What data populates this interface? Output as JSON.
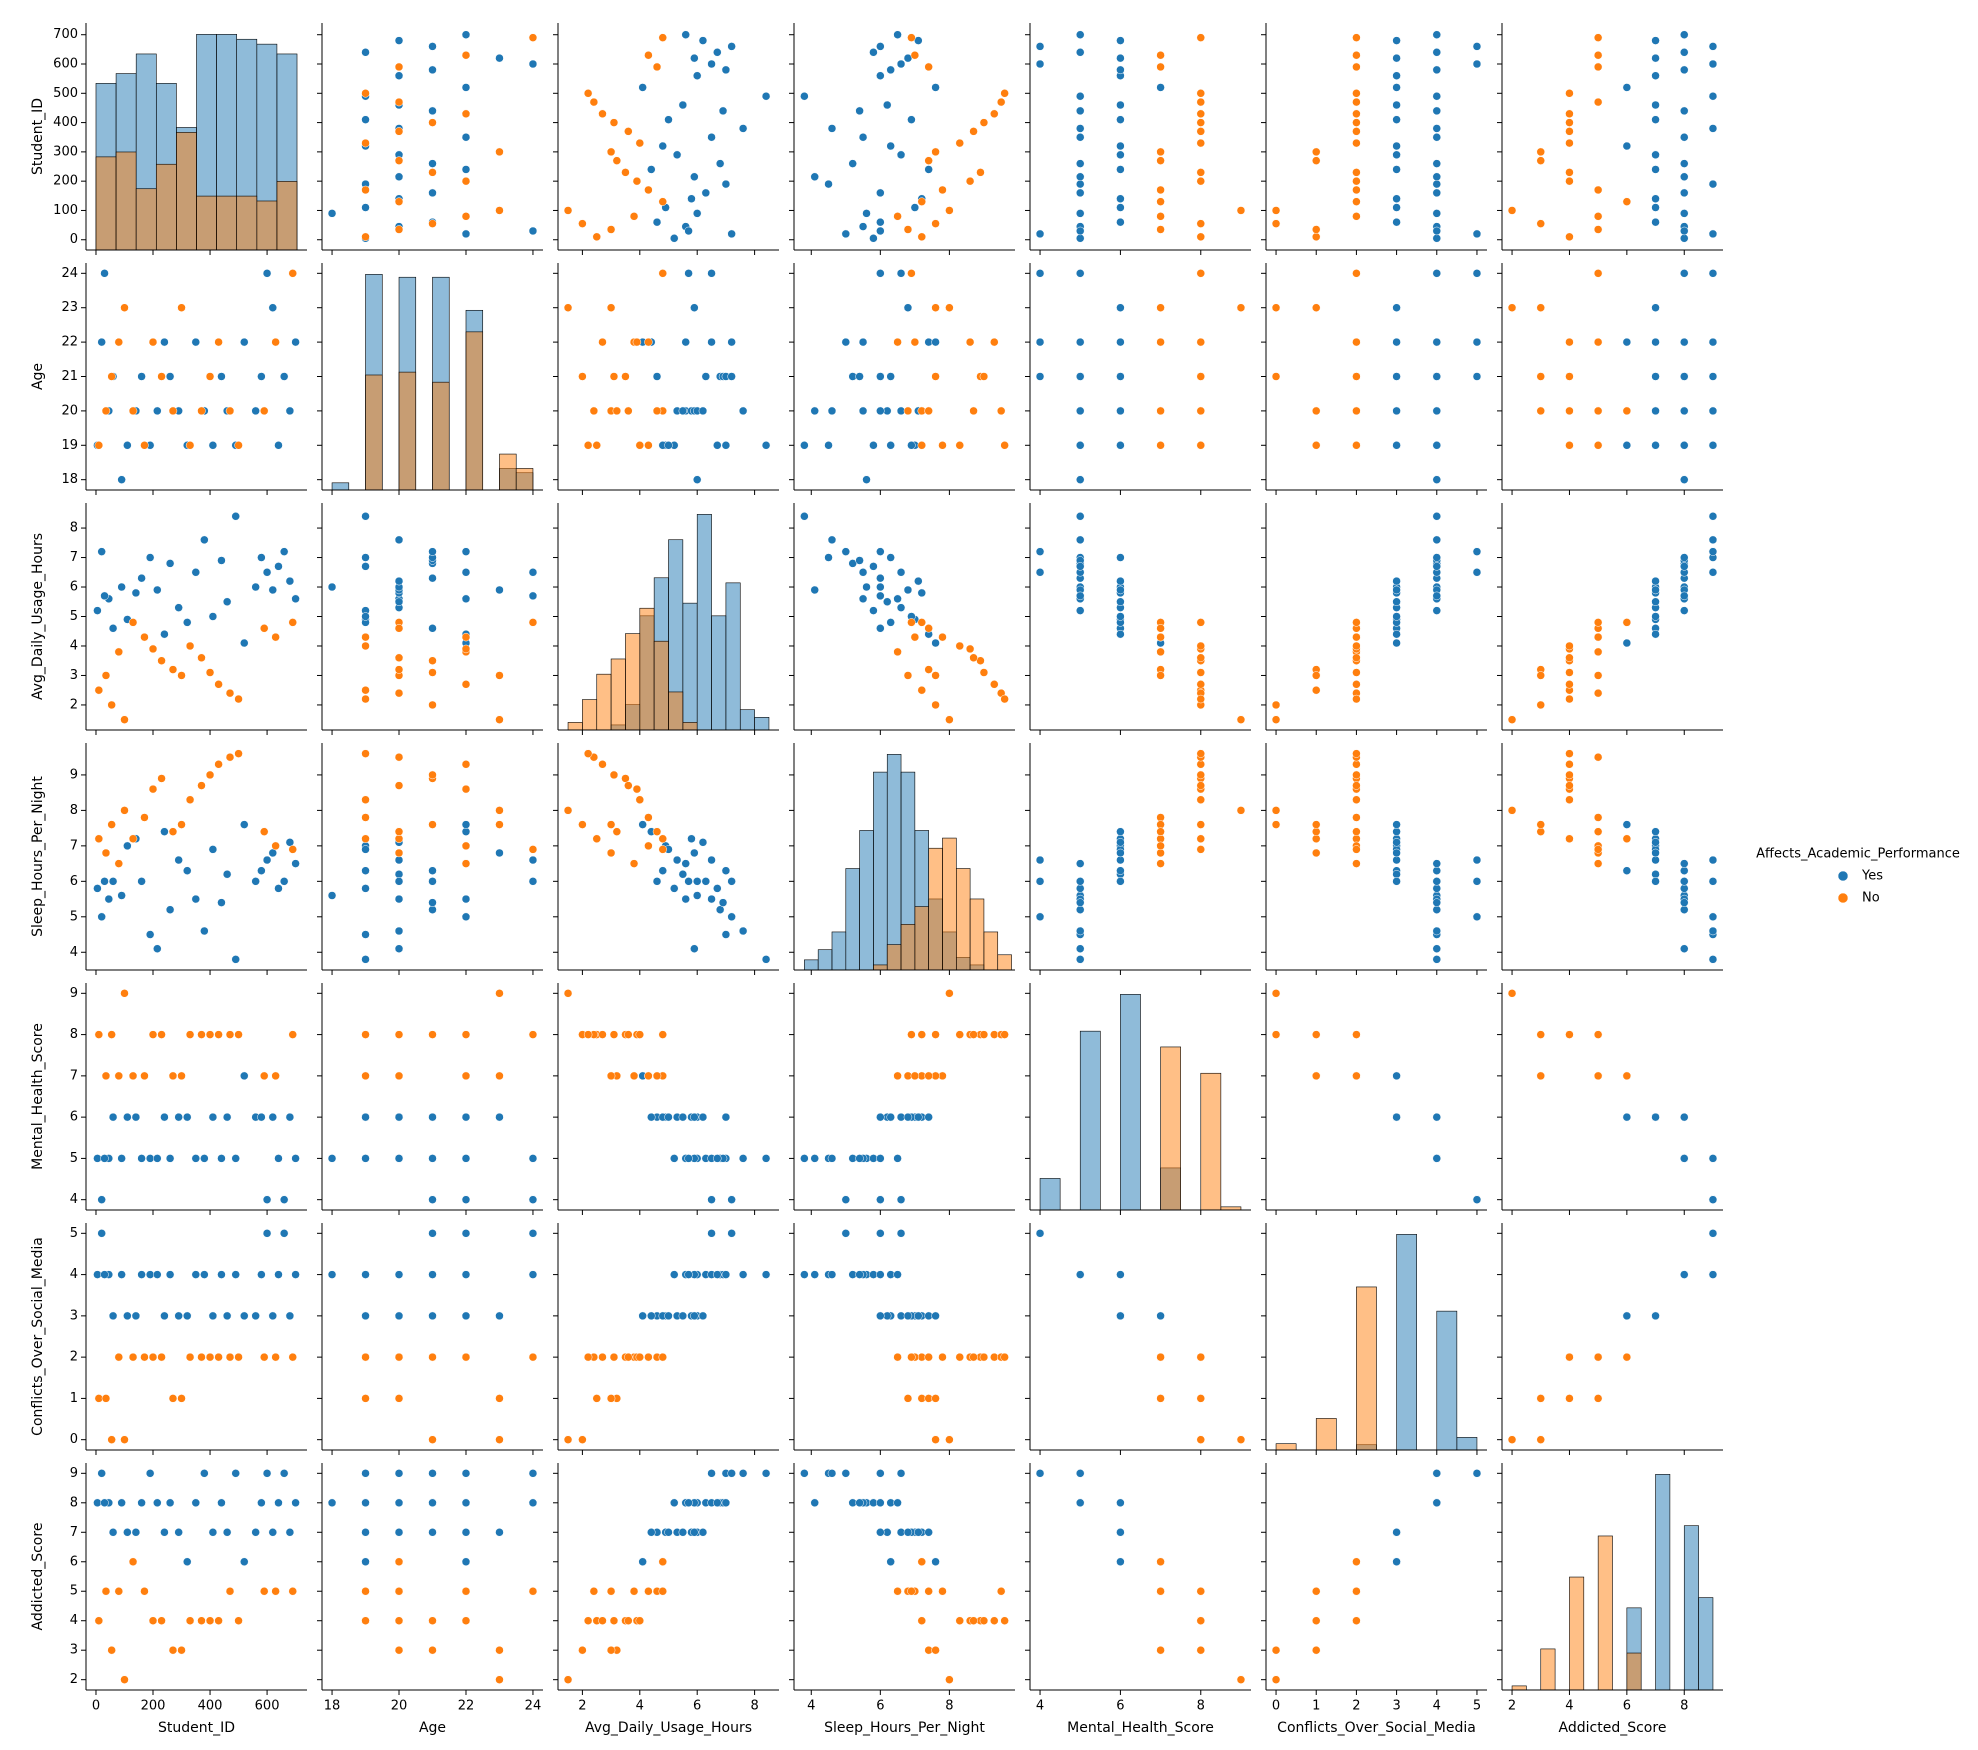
{
  "chart_data": {
    "type": "pairplot",
    "legend_title": "Affects_Academic_Performance",
    "variables": [
      {
        "name": "Student_ID",
        "lim": [
          -35,
          740
        ],
        "xticks": [
          0,
          200,
          400,
          600
        ],
        "yticks": [
          0,
          100,
          200,
          300,
          400,
          500,
          600,
          700
        ],
        "bins": [
          0,
          70.5,
          141,
          211.5,
          282,
          352.5,
          423,
          493.5,
          564,
          634.5,
          705
        ],
        "hist": [
          [
            68,
            72,
            80,
            68,
            50,
            88,
            88,
            86,
            84,
            80
          ],
          [
            38,
            40,
            25,
            35,
            48,
            22,
            22,
            22,
            20,
            28
          ]
        ]
      },
      {
        "name": "Age",
        "lim": [
          17.7,
          24.3
        ],
        "xticks": [
          18,
          20,
          22,
          24
        ],
        "yticks": [
          18,
          19,
          20,
          21,
          22,
          23,
          24
        ],
        "bins": [
          18,
          18.5,
          19,
          19.5,
          20,
          20.5,
          21,
          21.5,
          22,
          22.5,
          23,
          23.5,
          24
        ],
        "hist": [
          [
            5,
            0,
            150,
            0,
            148,
            0,
            148,
            0,
            125,
            0,
            15,
            12
          ],
          [
            0,
            0,
            80,
            0,
            82,
            0,
            75,
            0,
            110,
            0,
            25,
            15
          ]
        ]
      },
      {
        "name": "Avg_Daily_Usage_Hours",
        "lim": [
          1.15,
          8.85
        ],
        "xticks": [
          2,
          4,
          6,
          8
        ],
        "yticks": [
          2,
          3,
          4,
          5,
          6,
          7,
          8
        ],
        "bins": [
          1.5,
          2,
          2.5,
          3,
          3.5,
          4,
          4.5,
          5,
          5.5,
          6,
          6.5,
          7,
          7.5,
          8,
          8.5
        ],
        "hist": [
          [
            0,
            0,
            0,
            2,
            10,
            45,
            60,
            75,
            50,
            85,
            45,
            58,
            8,
            5
          ],
          [
            3,
            12,
            22,
            28,
            38,
            48,
            35,
            15,
            3,
            0,
            0,
            0,
            0,
            0
          ]
        ]
      },
      {
        "name": "Sleep_Hours_Per_Night",
        "lim": [
          3.5,
          9.9
        ],
        "xticks": [
          4,
          6,
          8
        ],
        "yticks": [
          4,
          5,
          6,
          7,
          8,
          9
        ],
        "bins": [
          3.8,
          4.2,
          4.6,
          5.0,
          5.4,
          5.8,
          6.2,
          6.6,
          7.0,
          7.4,
          7.8,
          8.2,
          8.6,
          9.0,
          9.4,
          9.8
        ],
        "hist": [
          [
            4,
            8,
            15,
            40,
            55,
            78,
            85,
            78,
            55,
            28,
            15,
            5,
            2,
            0,
            0
          ],
          [
            0,
            0,
            0,
            0,
            0,
            2,
            10,
            18,
            25,
            48,
            52,
            40,
            28,
            15,
            6
          ]
        ]
      },
      {
        "name": "Mental_Health_Score",
        "lim": [
          3.75,
          9.25
        ],
        "xticks": [
          4,
          6,
          8
        ],
        "yticks": [
          4,
          5,
          6,
          7,
          8,
          9
        ],
        "bins": [
          4,
          4.5,
          5,
          5.5,
          6,
          6.5,
          7,
          7.5,
          8,
          8.5,
          9
        ],
        "hist": [
          [
            30,
            0,
            170,
            0,
            205,
            0,
            40,
            0,
            0,
            0
          ],
          [
            0,
            0,
            0,
            0,
            0,
            0,
            155,
            0,
            130,
            3
          ]
        ]
      },
      {
        "name": "Conflicts_Over_Social_Media",
        "lim": [
          -0.25,
          5.25
        ],
        "xticks": [
          0,
          1,
          2,
          3,
          4,
          5
        ],
        "yticks": [
          0,
          1,
          2,
          3,
          4,
          5
        ],
        "bins": [
          0,
          0.5,
          1,
          1.5,
          2,
          2.5,
          3,
          3.5,
          4,
          4.5,
          5
        ],
        "hist": [
          [
            0,
            0,
            0,
            0,
            5,
            0,
            205,
            0,
            132,
            12
          ],
          [
            6,
            0,
            30,
            0,
            155,
            0,
            0,
            0,
            0,
            0
          ]
        ]
      },
      {
        "name": "Addicted_Score",
        "lim": [
          1.65,
          9.35
        ],
        "xticks": [
          2,
          4,
          6,
          8
        ],
        "yticks": [
          2,
          3,
          4,
          5,
          6,
          7,
          8,
          9
        ],
        "bins": [
          2,
          2.5,
          3,
          3.5,
          4,
          4.5,
          5,
          5.5,
          6,
          6.5,
          7,
          7.5,
          8,
          8.5,
          9
        ],
        "hist": [
          [
            0,
            0,
            0,
            0,
            0,
            0,
            0,
            0,
            40,
            0,
            105,
            0,
            80,
            45
          ],
          [
            2,
            0,
            20,
            0,
            55,
            0,
            75,
            0,
            18,
            0,
            0,
            0,
            0,
            0
          ]
        ]
      }
    ],
    "series": [
      {
        "name": "Yes",
        "color": "#1f77b4",
        "rows": [
          [
            5,
            19,
            5.2,
            5.8,
            5,
            4,
            8
          ],
          [
            20,
            22,
            7.2,
            5.0,
            4,
            5,
            9
          ],
          [
            45,
            20,
            5.6,
            5.5,
            5,
            4,
            8
          ],
          [
            60,
            21,
            4.6,
            6.0,
            6,
            3,
            7
          ],
          [
            90,
            18,
            6.0,
            5.6,
            5,
            4,
            8
          ],
          [
            110,
            19,
            4.9,
            7.0,
            6,
            3,
            7
          ],
          [
            140,
            20,
            5.8,
            7.2,
            6,
            3,
            7
          ],
          [
            160,
            21,
            6.3,
            6.0,
            5,
            4,
            8
          ],
          [
            190,
            19,
            7.0,
            4.5,
            5,
            4,
            9
          ],
          [
            215,
            20,
            5.9,
            4.1,
            5,
            4,
            8
          ],
          [
            240,
            22,
            4.4,
            7.4,
            6,
            3,
            7
          ],
          [
            260,
            21,
            6.8,
            5.2,
            5,
            4,
            8
          ],
          [
            290,
            20,
            5.3,
            6.6,
            6,
            3,
            7
          ],
          [
            320,
            19,
            4.8,
            6.3,
            6,
            3,
            6
          ],
          [
            350,
            22,
            6.5,
            5.5,
            5,
            4,
            8
          ],
          [
            380,
            20,
            7.6,
            4.6,
            5,
            4,
            9
          ],
          [
            410,
            19,
            5.0,
            6.9,
            6,
            3,
            7
          ],
          [
            440,
            21,
            6.9,
            5.4,
            5,
            4,
            8
          ],
          [
            460,
            20,
            5.5,
            6.2,
            6,
            3,
            7
          ],
          [
            490,
            19,
            8.4,
            3.8,
            5,
            4,
            9
          ],
          [
            520,
            22,
            4.1,
            7.6,
            7,
            3,
            6
          ],
          [
            560,
            20,
            6.0,
            6.0,
            6,
            3,
            7
          ],
          [
            580,
            21,
            7.0,
            6.3,
            6,
            4,
            8
          ],
          [
            600,
            24,
            6.5,
            6.6,
            4,
            5,
            9
          ],
          [
            620,
            23,
            5.9,
            6.8,
            6,
            3,
            7
          ],
          [
            640,
            19,
            6.7,
            5.8,
            5,
            4,
            8
          ],
          [
            660,
            21,
            7.2,
            6.0,
            4,
            5,
            9
          ],
          [
            680,
            20,
            6.2,
            7.1,
            6,
            3,
            7
          ],
          [
            700,
            22,
            5.6,
            6.5,
            5,
            4,
            8
          ],
          [
            30,
            24,
            5.7,
            6.0,
            5,
            4,
            8
          ]
        ]
      },
      {
        "name": "No",
        "color": "#ff7f0e",
        "rows": [
          [
            10,
            19,
            2.5,
            7.2,
            8,
            1,
            4
          ],
          [
            35,
            20,
            3.0,
            6.8,
            7,
            1,
            5
          ],
          [
            55,
            21,
            2.0,
            7.6,
            8,
            0,
            3
          ],
          [
            80,
            22,
            3.8,
            6.5,
            7,
            2,
            5
          ],
          [
            100,
            23,
            1.5,
            8.0,
            9,
            0,
            2
          ],
          [
            130,
            20,
            4.8,
            7.2,
            7,
            2,
            6
          ],
          [
            170,
            19,
            4.3,
            7.8,
            7,
            2,
            5
          ],
          [
            200,
            22,
            3.9,
            8.6,
            8,
            2,
            4
          ],
          [
            230,
            21,
            3.5,
            8.9,
            8,
            2,
            4
          ],
          [
            270,
            20,
            3.2,
            7.4,
            7,
            1,
            3
          ],
          [
            300,
            23,
            3.0,
            7.6,
            7,
            1,
            3
          ],
          [
            330,
            19,
            4.0,
            8.3,
            8,
            2,
            4
          ],
          [
            370,
            20,
            3.6,
            8.7,
            8,
            2,
            4
          ],
          [
            400,
            21,
            3.1,
            9.0,
            8,
            2,
            4
          ],
          [
            430,
            22,
            2.7,
            9.3,
            8,
            2,
            4
          ],
          [
            470,
            20,
            2.4,
            9.5,
            8,
            2,
            5
          ],
          [
            500,
            19,
            2.2,
            9.6,
            8,
            2,
            4
          ],
          [
            590,
            20,
            4.6,
            7.4,
            7,
            2,
            5
          ],
          [
            630,
            22,
            4.3,
            7.0,
            7,
            2,
            5
          ],
          [
            690,
            24,
            4.8,
            6.9,
            8,
            2,
            5
          ]
        ]
      }
    ]
  }
}
